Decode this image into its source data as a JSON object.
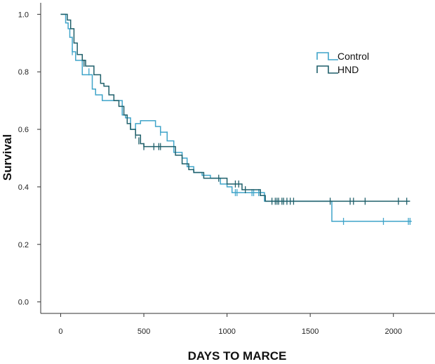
{
  "chart_data": {
    "type": "line",
    "subtype": "kaplan-meier step",
    "title": "",
    "xlabel": "DAYS TO MARCE",
    "ylabel": "Survival",
    "xlim": [
      -120,
      2250
    ],
    "ylim": [
      -0.04,
      1.04
    ],
    "xticks": [
      0,
      500,
      1000,
      1500,
      2000
    ],
    "xtick_labels": [
      "0",
      "500",
      "1000",
      "1500",
      "2000"
    ],
    "yticks": [
      0.0,
      0.2,
      0.4,
      0.6,
      0.8,
      1.0
    ],
    "ytick_labels": [
      "0.0",
      "0.2",
      "0.4",
      "0.6",
      "0.8",
      "1.0"
    ],
    "grid": false,
    "legend_position": "top-right",
    "series": [
      {
        "name": "Control",
        "color": "#3fa4c9",
        "steps": [
          [
            0,
            1.0
          ],
          [
            30,
            0.97
          ],
          [
            45,
            0.95
          ],
          [
            55,
            0.92
          ],
          [
            70,
            0.87
          ],
          [
            90,
            0.84
          ],
          [
            130,
            0.79
          ],
          [
            190,
            0.74
          ],
          [
            210,
            0.72
          ],
          [
            250,
            0.7
          ],
          [
            310,
            0.7
          ],
          [
            370,
            0.65
          ],
          [
            390,
            0.64
          ],
          [
            420,
            0.6
          ],
          [
            450,
            0.62
          ],
          [
            480,
            0.63
          ],
          [
            570,
            0.61
          ],
          [
            600,
            0.59
          ],
          [
            640,
            0.56
          ],
          [
            680,
            0.52
          ],
          [
            730,
            0.5
          ],
          [
            760,
            0.47
          ],
          [
            800,
            0.45
          ],
          [
            850,
            0.44
          ],
          [
            900,
            0.43
          ],
          [
            960,
            0.41
          ],
          [
            1000,
            0.4
          ],
          [
            1030,
            0.38
          ],
          [
            1100,
            0.38
          ],
          [
            1200,
            0.38
          ],
          [
            1225,
            0.35
          ],
          [
            1620,
            0.35
          ],
          [
            1630,
            0.28
          ],
          [
            2110,
            0.28
          ]
        ],
        "censored": [
          [
            70,
            0.87
          ],
          [
            140,
            0.83
          ],
          [
            170,
            0.8
          ],
          [
            600,
            0.59
          ],
          [
            640,
            0.58
          ],
          [
            1050,
            0.38
          ],
          [
            1060,
            0.38
          ],
          [
            1150,
            0.38
          ],
          [
            1160,
            0.38
          ],
          [
            1190,
            0.38
          ],
          [
            1200,
            0.38
          ],
          [
            1700,
            0.28
          ],
          [
            1940,
            0.28
          ],
          [
            2090,
            0.28
          ],
          [
            2100,
            0.28
          ]
        ]
      },
      {
        "name": "HND",
        "color": "#1f5f6a",
        "steps": [
          [
            0,
            1.0
          ],
          [
            40,
            0.98
          ],
          [
            60,
            0.95
          ],
          [
            80,
            0.9
          ],
          [
            100,
            0.86
          ],
          [
            130,
            0.84
          ],
          [
            150,
            0.82
          ],
          [
            200,
            0.79
          ],
          [
            240,
            0.76
          ],
          [
            260,
            0.75
          ],
          [
            290,
            0.72
          ],
          [
            320,
            0.7
          ],
          [
            350,
            0.68
          ],
          [
            380,
            0.65
          ],
          [
            400,
            0.62
          ],
          [
            420,
            0.6
          ],
          [
            450,
            0.58
          ],
          [
            480,
            0.55
          ],
          [
            500,
            0.54
          ],
          [
            600,
            0.54
          ],
          [
            650,
            0.54
          ],
          [
            690,
            0.51
          ],
          [
            730,
            0.48
          ],
          [
            770,
            0.46
          ],
          [
            800,
            0.45
          ],
          [
            860,
            0.43
          ],
          [
            960,
            0.43
          ],
          [
            1000,
            0.41
          ],
          [
            1090,
            0.39
          ],
          [
            1200,
            0.37
          ],
          [
            1230,
            0.35
          ],
          [
            2100,
            0.35
          ]
        ],
        "censored": [
          [
            140,
            0.83
          ],
          [
            450,
            0.58
          ],
          [
            470,
            0.56
          ],
          [
            500,
            0.54
          ],
          [
            560,
            0.54
          ],
          [
            590,
            0.54
          ],
          [
            600,
            0.54
          ],
          [
            950,
            0.43
          ],
          [
            1050,
            0.41
          ],
          [
            1070,
            0.41
          ],
          [
            1110,
            0.39
          ],
          [
            1270,
            0.35
          ],
          [
            1290,
            0.35
          ],
          [
            1300,
            0.35
          ],
          [
            1310,
            0.35
          ],
          [
            1330,
            0.35
          ],
          [
            1340,
            0.35
          ],
          [
            1360,
            0.35
          ],
          [
            1380,
            0.35
          ],
          [
            1400,
            0.35
          ],
          [
            1620,
            0.35
          ],
          [
            1740,
            0.35
          ],
          [
            1760,
            0.35
          ],
          [
            1830,
            0.35
          ],
          [
            2030,
            0.35
          ],
          [
            2080,
            0.35
          ]
        ]
      }
    ]
  }
}
